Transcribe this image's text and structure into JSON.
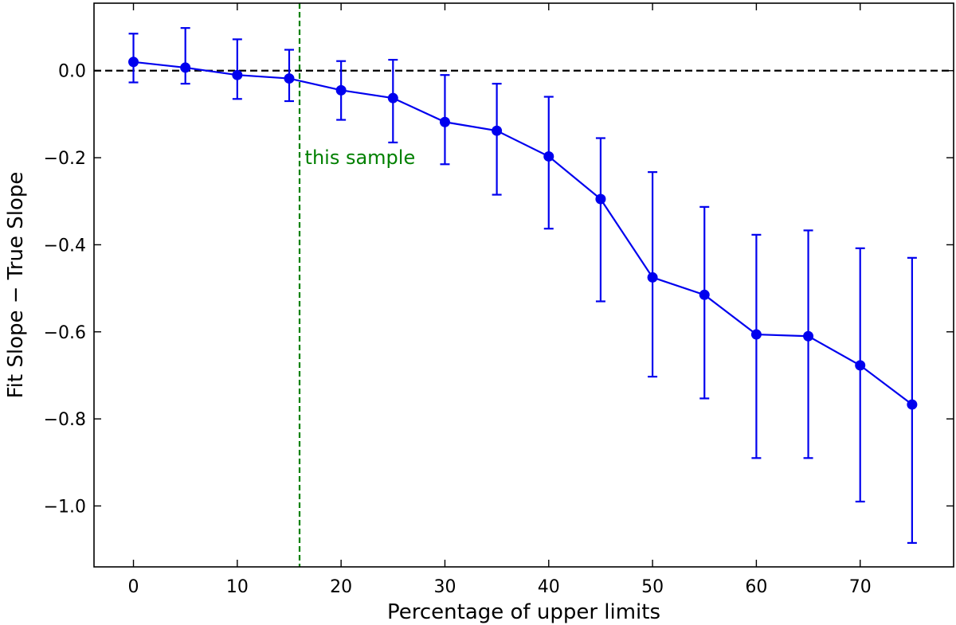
{
  "chart_data": {
    "type": "line",
    "title": "",
    "xlabel": "Percentage of upper limits",
    "ylabel": "Fit Slope − True Slope",
    "xlim": [
      -3.8,
      79
    ],
    "ylim": [
      -1.14,
      0.155
    ],
    "grid": false,
    "x_ticks": [
      0,
      10,
      20,
      30,
      40,
      50,
      60,
      70
    ],
    "x_tick_labels": [
      "0",
      "10",
      "20",
      "30",
      "40",
      "50",
      "60",
      "70"
    ],
    "y_ticks": [
      0.0,
      -0.2,
      -0.4,
      -0.6,
      -0.8,
      -1.0
    ],
    "y_tick_labels": [
      "0.0",
      "−0.2",
      "−0.4",
      "−0.6",
      "−0.8",
      "−1.0"
    ],
    "series": [
      {
        "color": "#0000ee",
        "x": [
          0,
          5,
          10,
          15,
          20,
          25,
          30,
          35,
          40,
          45,
          50,
          55,
          60,
          65,
          70,
          75
        ],
        "y": [
          0.02,
          0.007,
          -0.01,
          -0.018,
          -0.045,
          -0.063,
          -0.118,
          -0.138,
          -0.197,
          -0.295,
          -0.475,
          -0.515,
          -0.606,
          -0.61,
          -0.677,
          -0.767
        ],
        "yerr_upper": [
          0.085,
          0.098,
          0.072,
          0.048,
          0.022,
          0.025,
          -0.01,
          -0.03,
          -0.06,
          -0.155,
          -0.233,
          -0.313,
          -0.377,
          -0.367,
          -0.408,
          -0.43
        ],
        "yerr_lower": [
          -0.027,
          -0.03,
          -0.065,
          -0.07,
          -0.113,
          -0.165,
          -0.215,
          -0.285,
          -0.363,
          -0.53,
          -0.703,
          -0.753,
          -0.89,
          -0.89,
          -0.99,
          -1.085
        ]
      }
    ],
    "reference_lines": [
      {
        "orientation": "horizontal",
        "value": 0.0,
        "color": "#000000",
        "style": "dashed"
      },
      {
        "orientation": "vertical",
        "value": 16,
        "color": "#008000",
        "style": "dashed"
      }
    ],
    "annotations": [
      {
        "text": "this sample",
        "x": 16.5,
        "y": -0.2,
        "color": "#008000"
      }
    ]
  }
}
